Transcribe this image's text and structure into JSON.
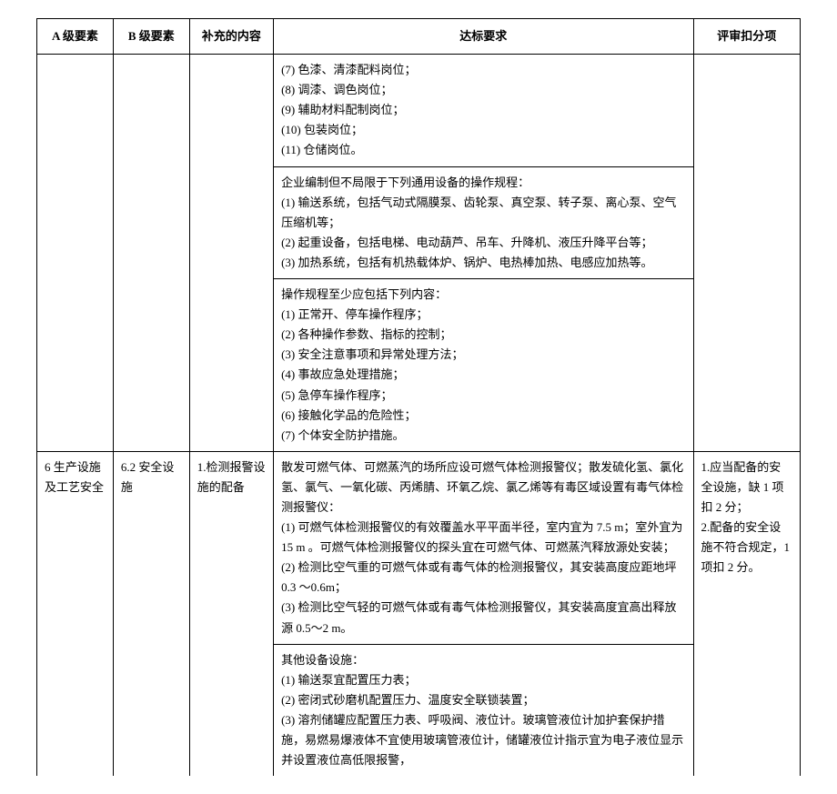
{
  "headers": {
    "colA": "A 级要素",
    "colB": "B 级要素",
    "colC": "补充的内容",
    "colD": "达标要求",
    "colE": "评审扣分项"
  },
  "row1": {
    "d": {
      "l1": "(7) 色漆、清漆配料岗位；",
      "l2": "(8) 调漆、调色岗位；",
      "l3": "(9) 辅助材料配制岗位；",
      "l4": "(10) 包装岗位；",
      "l5": "(11) 仓储岗位。"
    }
  },
  "row2": {
    "d": {
      "l1": "企业编制但不局限于下列通用设备的操作规程：",
      "l2": "(1) 输送系统，包括气动式隔膜泵、齿轮泵、真空泵、转子泵、离心泵、空气压缩机等；",
      "l3": "(2) 起重设备，包括电梯、电动葫芦、吊车、升降机、液压升降平台等；",
      "l4": "(3) 加热系统，包括有机热载体炉、锅炉、电热棒加热、电感应加热等。"
    }
  },
  "row3": {
    "d": {
      "l1": "操作规程至少应包括下列内容：",
      "l2": "(1) 正常开、停车操作程序；",
      "l3": "(2) 各种操作参数、指标的控制；",
      "l4": "(3) 安全注意事项和异常处理方法；",
      "l5": "(4) 事故应急处理措施；",
      "l6": "(5) 急停车操作程序；",
      "l7": "(6) 接触化学品的危险性；",
      "l8": "(7) 个体安全防护措施。"
    }
  },
  "row4": {
    "a": "6 生产设施及工艺安全",
    "b": "6.2 安全设施",
    "c": "1.检测报警设施的配备",
    "d": {
      "l1": "散发可燃气体、可燃蒸汽的场所应设可燃气体检测报警仪；散发硫化氢、氯化氢、氯气、一氧化碳、丙烯腈、环氧乙烷、氯乙烯等有毒区域设置有毒气体检测报警仪：",
      "l2": "(1) 可燃气体检测报警仪的有效覆盖水平平面半径，室内宜为 7.5 m；室外宜为 15 m 。可燃气体检测报警仪的探头宜在可燃气体、可燃蒸汽释放源处安装；",
      "l3": "(2) 检测比空气重的可燃气体或有毒气体的检测报警仪，其安装高度应距地坪 0.3 ～0.6m；",
      "l4": "(3) 检测比空气轻的可燃气体或有毒气体检测报警仪，其安装高度宜高出释放源 0.5～2 m。"
    },
    "e": {
      "l1": "1.应当配备的安全设施，缺 1 项扣 2 分；",
      "l2": "2.配备的安全设施不符合规定，1 项扣 2 分。"
    }
  },
  "row5": {
    "d": {
      "l1": "其他设备设施：",
      "l2": "(1) 输送泵宜配置压力表；",
      "l3": "(2) 密闭式砂磨机配置压力、温度安全联锁装置；",
      "l4": "(3) 溶剂储罐应配置压力表、呼吸阀、液位计。玻璃管液位计加护套保护措施，易燃易爆液体不宜使用玻璃管液位计，储罐液位计指示宜为电子液位显示并设置液位高低限报警，"
    }
  }
}
